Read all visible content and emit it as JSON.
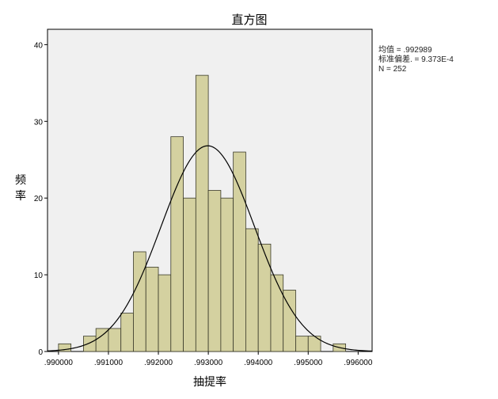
{
  "chart_data": {
    "type": "bar",
    "title": "直方图",
    "xlabel": "抽提率",
    "ylabel": "频率",
    "xlim": [
      0.98978,
      0.99628
    ],
    "ylim": [
      0,
      42
    ],
    "x_ticks": [
      0.99,
      0.991,
      0.992,
      0.993,
      0.994,
      0.995,
      0.996
    ],
    "x_tick_labels": [
      ".990000",
      ".991000",
      ".992000",
      ".993000",
      ".994000",
      ".995000",
      ".996000"
    ],
    "y_ticks": [
      0,
      10,
      20,
      30,
      40
    ],
    "y_tick_labels": [
      "0",
      "10",
      "20",
      "30",
      "40"
    ],
    "bin_width": 0.00025,
    "bins_start": [
      0.99,
      0.99025,
      0.9905,
      0.99075,
      0.991,
      0.99125,
      0.9915,
      0.99175,
      0.992,
      0.99225,
      0.9925,
      0.99275,
      0.993,
      0.99325,
      0.9935,
      0.99375,
      0.994,
      0.99425,
      0.9945,
      0.99475,
      0.995,
      0.99525,
      0.9955
    ],
    "values": [
      1,
      0,
      2,
      3,
      3,
      5,
      13,
      11,
      10,
      28,
      20,
      36,
      21,
      20,
      26,
      16,
      14,
      10,
      8,
      2,
      2,
      0,
      1
    ],
    "normal_curve": {
      "mean": 0.992989,
      "std": 0.0009373
    },
    "stats": {
      "mean_label": "均值 = .992989",
      "std_label": "标准偏差. = 9.373E-4",
      "n_label": "N = 252"
    },
    "colors": {
      "bar_fill": "#d4d1a0",
      "bar_stroke": "#3a3a2a",
      "plot_bg": "#f0f0f0",
      "curve": "#000000"
    },
    "grid": false,
    "legend": "none"
  }
}
